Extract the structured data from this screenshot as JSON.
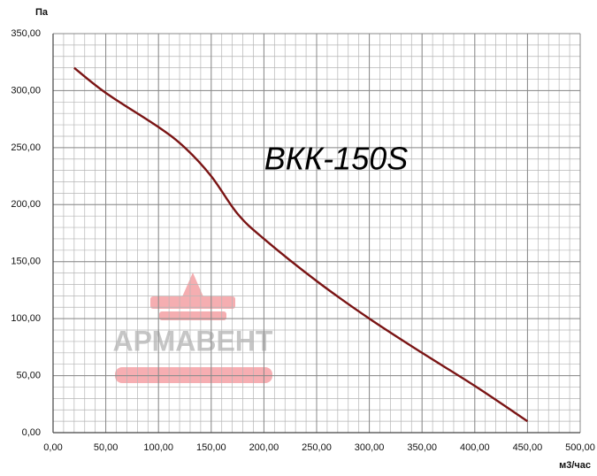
{
  "chart_data": {
    "type": "line",
    "annotation": "ВКК-150S",
    "watermark": "АРМАВЕНТ",
    "xlabel": "м3/час",
    "ylabel": "Па",
    "x": [
      20,
      50,
      100,
      125,
      150,
      175,
      200,
      250,
      300,
      350,
      400,
      450
    ],
    "series": [
      {
        "name": "ВКК-150S",
        "color": "#7a1414",
        "values": [
          320,
          298,
          268,
          250,
          225,
          192,
          170,
          133,
          100,
          70,
          41,
          10
        ]
      }
    ],
    "xlim": [
      0,
      500
    ],
    "ylim": [
      0,
      350
    ],
    "xticks": [
      {
        "value": 0,
        "label": "0,00"
      },
      {
        "value": 50,
        "label": "50,00"
      },
      {
        "value": 100,
        "label": "100,00"
      },
      {
        "value": 150,
        "label": "150,00"
      },
      {
        "value": 200,
        "label": "200,00"
      },
      {
        "value": 250,
        "label": "250,00"
      },
      {
        "value": 300,
        "label": "300,00"
      },
      {
        "value": 350,
        "label": "350,00"
      },
      {
        "value": 400,
        "label": "400,00"
      },
      {
        "value": 450,
        "label": "450,00"
      },
      {
        "value": 500,
        "label": "500,00"
      }
    ],
    "yticks": [
      {
        "value": 0,
        "label": "0,00"
      },
      {
        "value": 50,
        "label": "50,00"
      },
      {
        "value": 100,
        "label": "100,00"
      },
      {
        "value": 150,
        "label": "150,00"
      },
      {
        "value": 200,
        "label": "200,00"
      },
      {
        "value": 250,
        "label": "250,00"
      },
      {
        "value": 300,
        "label": "300,00"
      },
      {
        "value": 350,
        "label": "350,00"
      }
    ],
    "grid": true,
    "minor_grid": {
      "x": 10,
      "y": 10
    }
  }
}
